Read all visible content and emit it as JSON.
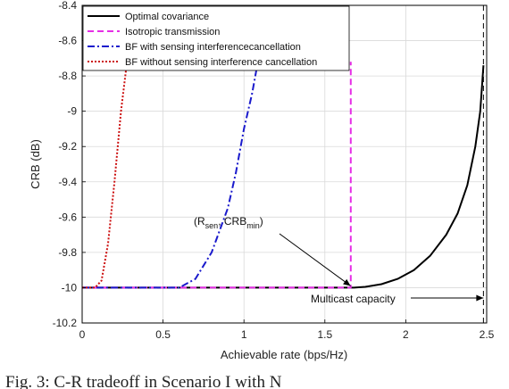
{
  "chart_data": {
    "type": "line",
    "title": "",
    "xlabel": "Achievable rate (bps/Hz)",
    "ylabel": "CRB (dB)",
    "xlim": [
      0,
      2.5
    ],
    "ylim": [
      -10.2,
      -8.4
    ],
    "xticks": [
      0,
      0.5,
      1,
      1.5,
      2,
      2.5
    ],
    "xtick_labels": [
      "0",
      "0.5",
      "1",
      "1.5",
      "2",
      "2.5"
    ],
    "yticks": [
      -8.4,
      -8.6,
      -8.8,
      -9,
      -9.2,
      -9.4,
      -9.6,
      -9.8,
      -10,
      -10.2
    ],
    "ytick_labels": [
      "-8.4",
      "-8.6",
      "-8.8",
      "-9",
      "-9.2",
      "-9.4",
      "-9.6",
      "-9.8",
      "-10",
      "-10.2"
    ],
    "grid": true,
    "legend_position": "top-left",
    "series": [
      {
        "name": "Optimal covariance",
        "color": "#000000",
        "style": "solid",
        "x": [
          0,
          1.65,
          1.68,
          1.75,
          1.85,
          1.95,
          2.05,
          2.15,
          2.25,
          2.32,
          2.38,
          2.43,
          2.46,
          2.48
        ],
        "y": [
          -10.0,
          -10.0,
          -10.0,
          -9.995,
          -9.98,
          -9.95,
          -9.9,
          -9.82,
          -9.7,
          -9.58,
          -9.42,
          -9.2,
          -9.0,
          -8.74
        ]
      },
      {
        "name": "Isotropic transmission",
        "color": "#e62ee6",
        "style": "dashed",
        "x": [
          0,
          1.66,
          1.66
        ],
        "y": [
          -10.0,
          -10.0,
          -8.72
        ]
      },
      {
        "name": "BF with sensing interferencecancellation",
        "color": "#1a1acc",
        "style": "dashdot",
        "x": [
          0,
          0.6,
          0.7,
          0.8,
          0.9,
          0.95,
          1.0,
          1.05,
          1.08,
          1.1
        ],
        "y": [
          -10.0,
          -10.0,
          -9.95,
          -9.8,
          -9.55,
          -9.35,
          -9.1,
          -8.9,
          -8.75,
          -8.65
        ]
      },
      {
        "name": "BF without sensing interference cancellation",
        "color": "#cc1010",
        "style": "dotted",
        "x": [
          0,
          0.08,
          0.12,
          0.16,
          0.2,
          0.24,
          0.28,
          0.3
        ],
        "y": [
          -10.0,
          -10.0,
          -9.96,
          -9.75,
          -9.4,
          -9.0,
          -8.7,
          -8.6
        ]
      }
    ],
    "annotations": [
      {
        "text_main": "(R",
        "sub1": "sen",
        "text_mid": ", CRB",
        "sub2": "min",
        "text_end": ")",
        "x": 1.67,
        "y": -10.0
      },
      {
        "text": "Multicast capacity",
        "x": 2.48,
        "y": -10.07
      }
    ],
    "reference_lines": [
      {
        "x": 2.48,
        "style": "dashed",
        "color": "#000000"
      }
    ]
  },
  "caption": "Fig. 3: C-R tradeoff in Scenario I with N"
}
